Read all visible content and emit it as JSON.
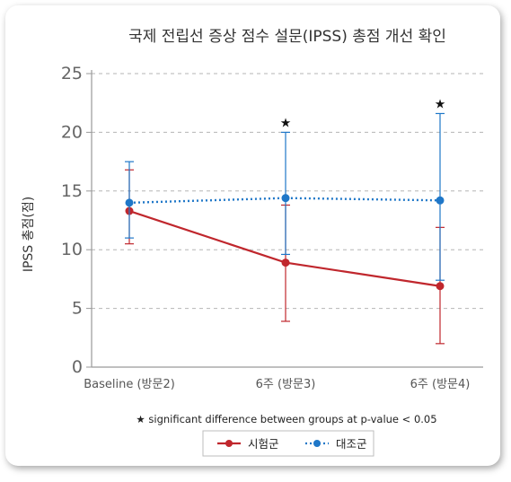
{
  "chart_data": {
    "type": "line",
    "title": "국제 전립선 증상 점수 설문(IPSS) 총점 개선 확인",
    "ylabel": "IPSS 총점(점)",
    "xlabel": "",
    "categories": [
      "Baseline (방문2)",
      "6주 (방문3)",
      "6주 (방문4)"
    ],
    "ylim": [
      0,
      25
    ],
    "yticks": [
      0,
      5,
      10,
      15,
      20,
      25
    ],
    "grid": true,
    "series": [
      {
        "name": "시험군",
        "color": "#c0272d",
        "line_style": "solid",
        "values": [
          13.3,
          8.9,
          6.9
        ],
        "error_low": [
          10.5,
          3.9,
          2.0
        ],
        "error_high": [
          16.8,
          13.8,
          11.9
        ]
      },
      {
        "name": "대조군",
        "color": "#1f77c8",
        "line_style": "dotted",
        "values": [
          14.0,
          14.4,
          14.2
        ],
        "error_low": [
          11.0,
          9.6,
          7.4
        ],
        "error_high": [
          17.5,
          20.0,
          21.6
        ]
      }
    ],
    "significance_marker": "★",
    "significant_categories": [
      "6주 (방문3)",
      "6주 (방문4)"
    ],
    "footnote": "★ significant difference between groups at p-value < 0.05",
    "legend_position": "bottom"
  }
}
